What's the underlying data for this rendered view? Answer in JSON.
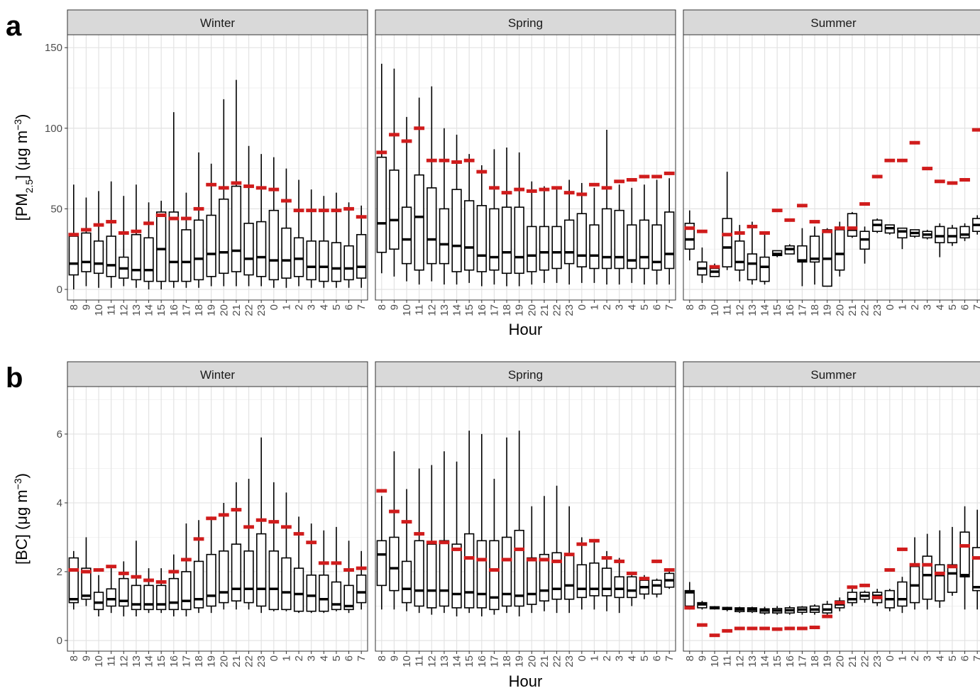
{
  "chart_data": [
    {
      "type": "box",
      "panel_label": "a",
      "ylabel": [
        "[PM",
        "2.5",
        "] (μg m",
        "−3",
        ")"
      ],
      "xlabel": "Hour",
      "categories": [
        "8",
        "9",
        "10",
        "11",
        "12",
        "13",
        "14",
        "15",
        "16",
        "17",
        "18",
        "19",
        "20",
        "21",
        "22",
        "23",
        "0",
        "1",
        "2",
        "3",
        "4",
        "5",
        "6",
        "7"
      ],
      "ylim": [
        -6.6,
        158
      ],
      "yticks": [
        0,
        50,
        100,
        150
      ],
      "minor_yticks": [
        25,
        75,
        125
      ],
      "grid": true,
      "box_color": "#000000",
      "mean_color": "#d01c1c",
      "facets": [
        {
          "title": "Winter",
          "low": [
            0,
            2,
            1,
            1,
            2,
            1,
            0,
            0,
            1,
            1,
            1,
            2,
            2,
            2,
            2,
            2,
            1,
            1,
            2,
            1,
            1,
            1,
            1,
            1
          ],
          "q1": [
            9,
            11,
            10,
            8,
            7,
            6,
            5,
            5,
            5,
            5,
            6,
            8,
            10,
            11,
            9,
            8,
            6,
            7,
            8,
            6,
            5,
            5,
            6,
            7
          ],
          "median": [
            16,
            17,
            16,
            15,
            13,
            12,
            12,
            25,
            17,
            17,
            19,
            22,
            23,
            24,
            19,
            20,
            18,
            18,
            19,
            14,
            14,
            13,
            13,
            14
          ],
          "q3": [
            33,
            35,
            30,
            33,
            20,
            34,
            32,
            48,
            48,
            37,
            43,
            46,
            56,
            64,
            41,
            42,
            49,
            38,
            32,
            30,
            30,
            29,
            27,
            34
          ],
          "high": [
            65,
            57,
            61,
            67,
            58,
            65,
            54,
            55,
            110,
            60,
            85,
            78,
            118,
            130,
            89,
            84,
            82,
            75,
            68,
            62,
            58,
            60,
            54,
            52
          ],
          "mean": [
            34,
            37,
            40,
            42,
            35,
            36,
            41,
            46,
            44,
            44,
            50,
            65,
            63,
            66,
            64,
            63,
            62,
            55,
            49,
            49,
            49,
            49,
            50,
            45
          ]
        },
        {
          "title": "Spring",
          "low": [
            10,
            8,
            5,
            3,
            5,
            3,
            3,
            4,
            2,
            3,
            2,
            2,
            3,
            4,
            4,
            3,
            4,
            4,
            3,
            3,
            4,
            3,
            3,
            3
          ],
          "q1": [
            23,
            25,
            16,
            12,
            16,
            16,
            11,
            12,
            11,
            12,
            10,
            10,
            11,
            12,
            13,
            16,
            14,
            13,
            13,
            13,
            13,
            13,
            12,
            13
          ],
          "median": [
            41,
            43,
            31,
            45,
            31,
            28,
            27,
            26,
            21,
            20,
            23,
            20,
            21,
            23,
            23,
            23,
            21,
            21,
            20,
            20,
            18,
            20,
            17,
            22
          ],
          "q3": [
            82,
            74,
            51,
            71,
            63,
            50,
            62,
            55,
            52,
            50,
            51,
            51,
            39,
            39,
            39,
            43,
            47,
            40,
            50,
            49,
            40,
            43,
            40,
            48
          ],
          "high": [
            140,
            137,
            107,
            119,
            126,
            100,
            96,
            84,
            77,
            87,
            88,
            85,
            67,
            64,
            62,
            68,
            66,
            63,
            99,
            65,
            63,
            65,
            68,
            69
          ],
          "mean": [
            85,
            96,
            92,
            100,
            80,
            80,
            79,
            80,
            73,
            63,
            60,
            62,
            61,
            62,
            63,
            60,
            59,
            65,
            63,
            67,
            68,
            70,
            70,
            72
          ]
        },
        {
          "title": "Summer",
          "low": [
            18,
            4,
            8,
            12,
            5,
            3,
            3,
            20,
            22,
            2,
            3,
            2,
            8,
            32,
            16,
            35,
            34,
            25,
            32,
            31,
            20,
            27,
            30,
            34
          ],
          "q1": [
            25,
            9,
            8,
            14,
            12,
            6,
            5,
            21,
            22,
            17,
            17,
            2,
            12,
            33,
            25,
            36,
            35,
            32,
            33,
            32,
            29,
            29,
            32,
            36
          ],
          "median": [
            31,
            13,
            11,
            26,
            17,
            16,
            14,
            22,
            25,
            18,
            19,
            19,
            22,
            37,
            31,
            40,
            38,
            36,
            35,
            34,
            33,
            33,
            34,
            40
          ],
          "q3": [
            41,
            17,
            13,
            44,
            30,
            22,
            20,
            24,
            27,
            27,
            33,
            37,
            37,
            47,
            36,
            43,
            40,
            38,
            37,
            36,
            39,
            38,
            39,
            44
          ],
          "high": [
            49,
            26,
            16,
            73,
            40,
            42,
            35,
            24,
            28,
            38,
            39,
            38,
            42,
            48,
            39,
            44,
            40,
            38,
            37,
            37,
            41,
            40,
            41,
            46
          ],
          "mean": [
            38,
            36,
            14,
            34,
            35,
            39,
            35,
            49,
            43,
            52,
            42,
            36,
            38,
            38,
            53,
            70,
            80,
            80,
            91,
            75,
            67,
            66,
            68,
            99
          ]
        }
      ]
    },
    {
      "type": "box",
      "panel_label": "b",
      "ylabel": [
        "[BC] (μg m",
        "−3",
        ")"
      ],
      "xlabel": "Hour",
      "categories": [
        "8",
        "9",
        "10",
        "11",
        "12",
        "13",
        "14",
        "15",
        "16",
        "17",
        "18",
        "19",
        "20",
        "21",
        "22",
        "23",
        "0",
        "1",
        "2",
        "3",
        "4",
        "5",
        "6",
        "7"
      ],
      "ylim": [
        -0.31,
        7.38
      ],
      "yticks": [
        0,
        2,
        4,
        6
      ],
      "minor_yticks": [
        1,
        3,
        5,
        7
      ],
      "grid": true,
      "box_color": "#000000",
      "mean_color": "#d01c1c",
      "facets": [
        {
          "title": "Winter",
          "low": [
            0.9,
            1.0,
            0.7,
            0.8,
            0.7,
            0.7,
            0.8,
            0.8,
            0.7,
            0.7,
            0.8,
            0.8,
            0.9,
            0.9,
            0.9,
            0.8,
            0.85,
            0.85,
            0.8,
            0.8,
            0.8,
            0.85,
            0.8,
            0.9
          ],
          "q1": [
            1.1,
            1.2,
            0.9,
            1.0,
            1.0,
            0.9,
            0.9,
            0.9,
            0.9,
            0.9,
            0.95,
            1.0,
            1.1,
            1.15,
            1.1,
            1.0,
            0.9,
            0.9,
            0.85,
            0.85,
            0.85,
            0.9,
            0.9,
            1.1
          ],
          "median": [
            1.2,
            1.3,
            1.1,
            1.2,
            1.15,
            1.05,
            1.05,
            1.05,
            1.1,
            1.15,
            1.2,
            1.3,
            1.4,
            1.5,
            1.5,
            1.5,
            1.5,
            1.4,
            1.35,
            1.3,
            1.2,
            1.05,
            1.0,
            1.4
          ],
          "q3": [
            2.4,
            2.1,
            1.4,
            1.5,
            1.8,
            1.6,
            1.6,
            1.6,
            1.8,
            2.0,
            2.3,
            2.5,
            2.6,
            2.8,
            2.6,
            3.1,
            2.6,
            2.4,
            2.1,
            1.9,
            1.9,
            1.7,
            1.6,
            1.9
          ],
          "high": [
            2.6,
            3.0,
            1.9,
            2.1,
            2.3,
            2.9,
            2.1,
            2.1,
            2.5,
            3.4,
            3.5,
            3.6,
            4.0,
            4.6,
            4.7,
            5.9,
            4.6,
            4.3,
            3.6,
            3.4,
            3.2,
            3.3,
            2.9,
            2.6
          ],
          "mean": [
            2.05,
            2.0,
            2.05,
            2.15,
            1.95,
            1.85,
            1.75,
            1.7,
            2.0,
            2.35,
            2.95,
            3.55,
            3.65,
            3.8,
            3.3,
            3.5,
            3.45,
            3.3,
            3.1,
            2.85,
            2.25,
            2.25,
            2.05,
            2.1
          ]
        },
        {
          "title": "Spring",
          "low": [
            0.9,
            0.9,
            0.85,
            0.8,
            0.75,
            0.8,
            0.7,
            0.8,
            0.7,
            0.75,
            0.8,
            0.7,
            0.8,
            0.85,
            0.8,
            0.8,
            0.9,
            0.9,
            0.85,
            0.8,
            1.0,
            1.2,
            1.25,
            1.5
          ],
          "q1": [
            1.6,
            1.45,
            1.1,
            1.0,
            0.95,
            1.0,
            0.95,
            0.95,
            0.95,
            0.9,
            1.0,
            1.0,
            1.05,
            1.15,
            1.2,
            1.2,
            1.25,
            1.3,
            1.3,
            1.25,
            1.25,
            1.35,
            1.35,
            1.55
          ],
          "median": [
            2.5,
            2.1,
            1.5,
            1.45,
            1.45,
            1.45,
            1.35,
            1.4,
            1.35,
            1.25,
            1.35,
            1.3,
            1.35,
            1.45,
            1.5,
            1.6,
            1.5,
            1.5,
            1.5,
            1.5,
            1.45,
            1.55,
            1.6,
            1.75
          ],
          "q3": [
            2.9,
            3.0,
            2.3,
            2.9,
            2.8,
            2.9,
            2.8,
            3.1,
            2.9,
            2.9,
            3.0,
            3.2,
            2.4,
            2.5,
            2.55,
            2.5,
            2.2,
            2.25,
            2.1,
            1.85,
            1.85,
            1.75,
            1.75,
            1.95
          ],
          "high": [
            4.2,
            5.5,
            4.4,
            5.0,
            5.1,
            5.5,
            5.2,
            6.1,
            6.0,
            4.7,
            5.9,
            6.1,
            3.9,
            4.2,
            4.5,
            3.9,
            3.0,
            2.9,
            2.6,
            2.4,
            2.0,
            1.9,
            1.8,
            2.1
          ],
          "mean": [
            4.35,
            3.75,
            3.45,
            3.1,
            2.85,
            2.85,
            2.65,
            2.4,
            2.35,
            2.05,
            2.35,
            2.65,
            2.35,
            2.35,
            2.3,
            2.5,
            2.8,
            2.9,
            2.4,
            2.3,
            1.95,
            1.8,
            2.3,
            2.05
          ]
        },
        {
          "title": "Summer",
          "low": [
            0.9,
            0.9,
            0.9,
            0.85,
            0.8,
            0.8,
            0.75,
            0.75,
            0.75,
            0.75,
            0.75,
            0.7,
            0.85,
            1.0,
            1.1,
            1.0,
            0.85,
            0.8,
            0.9,
            0.9,
            0.95,
            1.3,
            0.9,
            0.9
          ],
          "q1": [
            1.0,
            0.95,
            0.92,
            0.9,
            0.84,
            0.84,
            0.8,
            0.8,
            0.8,
            0.82,
            0.82,
            0.8,
            0.95,
            1.1,
            1.2,
            1.1,
            0.95,
            1.0,
            1.1,
            1.2,
            1.15,
            1.4,
            1.85,
            1.45
          ],
          "median": [
            1.4,
            1.05,
            0.95,
            0.93,
            0.9,
            0.9,
            0.87,
            0.87,
            0.88,
            0.9,
            0.9,
            0.9,
            1.05,
            1.2,
            1.3,
            1.3,
            1.2,
            1.2,
            1.6,
            1.9,
            1.9,
            1.95,
            1.9,
            1.55
          ],
          "q3": [
            1.45,
            1.1,
            0.98,
            0.96,
            0.95,
            0.95,
            0.92,
            0.93,
            0.95,
            0.97,
            1.0,
            1.05,
            1.15,
            1.4,
            1.4,
            1.4,
            1.45,
            1.7,
            2.15,
            2.45,
            2.2,
            2.2,
            3.15,
            2.7
          ],
          "high": [
            1.7,
            1.15,
            1.0,
            0.98,
            0.98,
            0.98,
            0.98,
            1.0,
            1.0,
            1.0,
            1.05,
            1.15,
            1.25,
            1.6,
            1.45,
            1.5,
            1.5,
            1.85,
            3.0,
            3.1,
            3.2,
            3.3,
            3.9,
            3.8
          ],
          "mean": [
            0.95,
            0.45,
            0.15,
            0.28,
            0.35,
            0.35,
            0.35,
            0.33,
            0.35,
            0.35,
            0.38,
            0.7,
            1.1,
            1.55,
            1.6,
            1.25,
            2.05,
            2.65,
            2.2,
            2.2,
            1.95,
            2.15,
            2.75,
            2.4
          ]
        }
      ]
    }
  ]
}
